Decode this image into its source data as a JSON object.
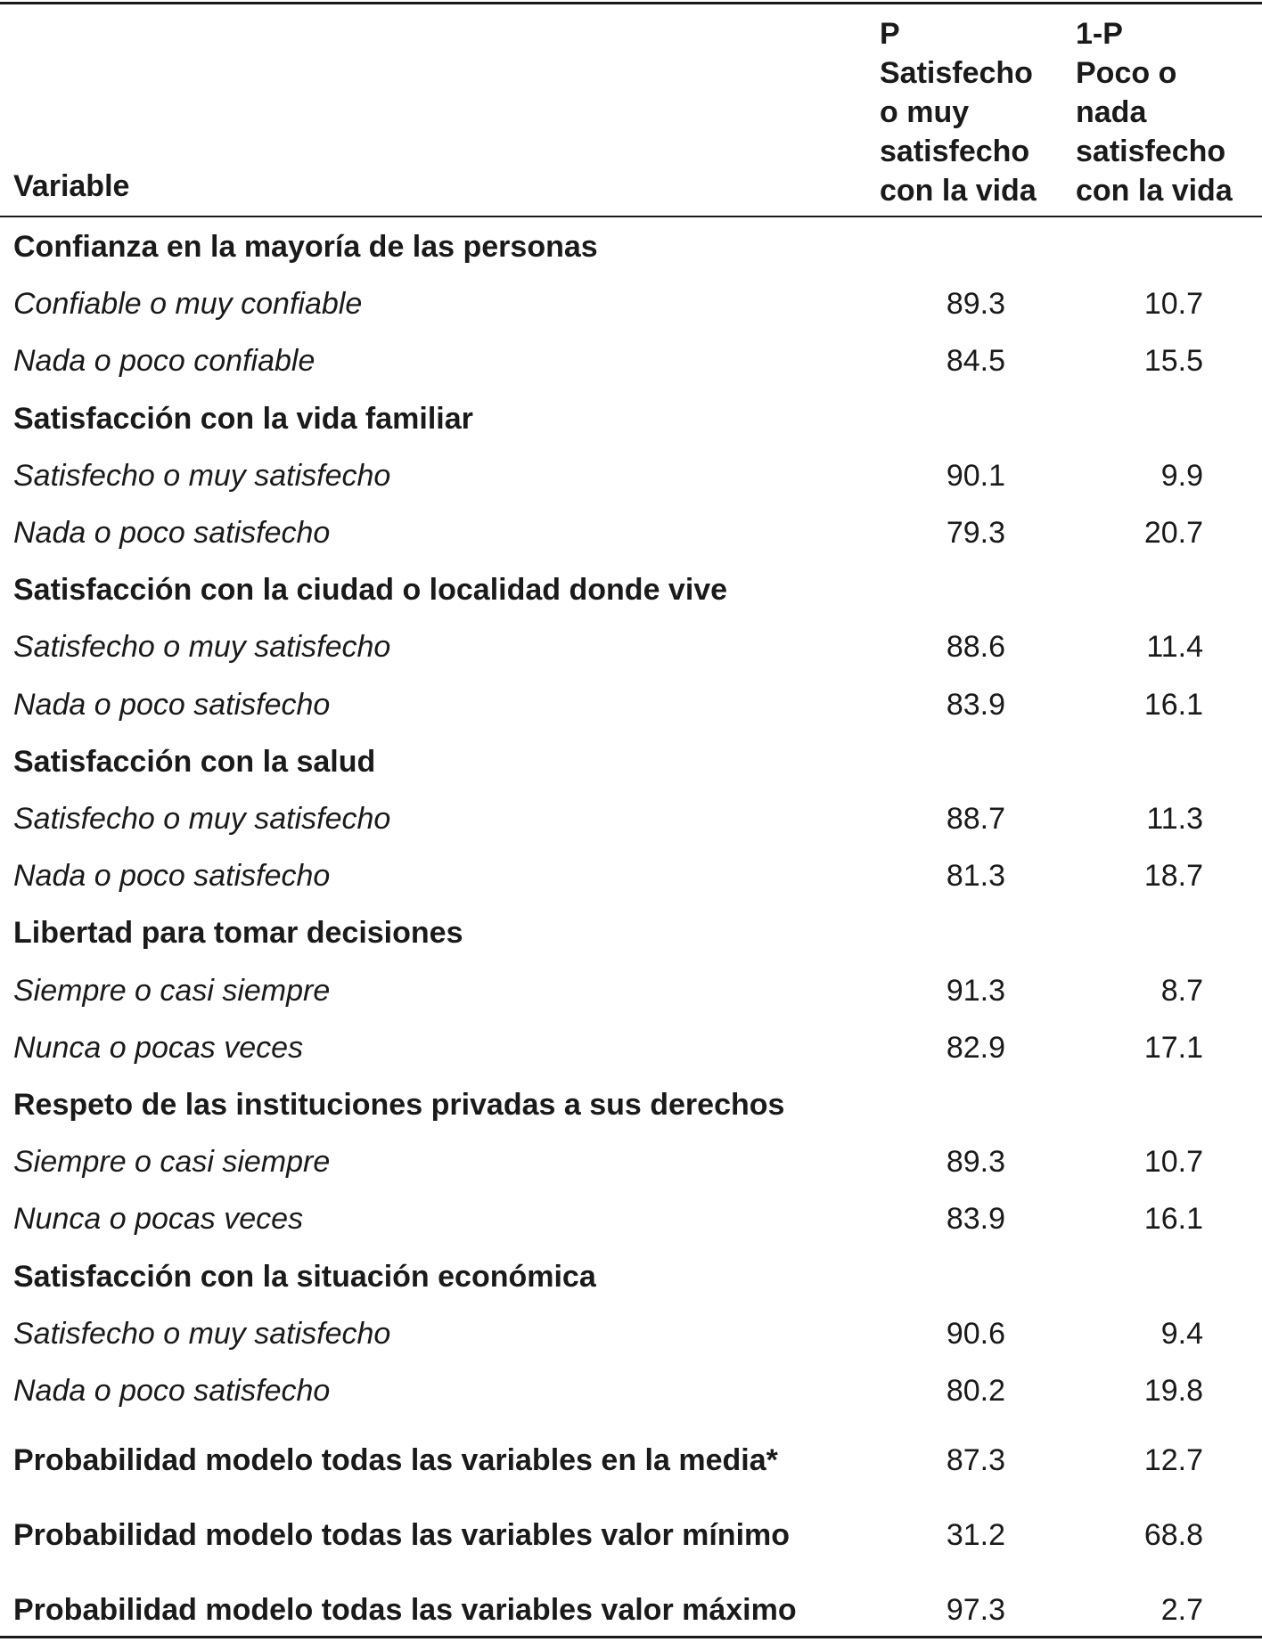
{
  "header": {
    "variable": "Variable",
    "p_col": [
      "P",
      "Satisfecho",
      "o muy",
      "satisfecho",
      "con la vida"
    ],
    "np_col": [
      "1-P",
      "Poco o",
      "nada",
      "satisfecho",
      "con la vida"
    ]
  },
  "rows": [
    {
      "type": "cat",
      "label": "Confianza en la mayoría de las personas",
      "p": "",
      "np": ""
    },
    {
      "type": "sub",
      "label": "Confiable o muy confiable",
      "p": "89.3",
      "np": "10.7"
    },
    {
      "type": "sub",
      "label": "Nada o poco confiable",
      "p": "84.5",
      "np": "15.5"
    },
    {
      "type": "cat",
      "label": "Satisfacción con la vida familiar",
      "p": "",
      "np": ""
    },
    {
      "type": "sub",
      "label": "Satisfecho o muy satisfecho",
      "p": "90.1",
      "np": "9.9"
    },
    {
      "type": "sub",
      "label": "Nada o poco satisfecho",
      "p": "79.3",
      "np": "20.7"
    },
    {
      "type": "cat",
      "label": "Satisfacción con la ciudad o localidad donde vive",
      "p": "",
      "np": ""
    },
    {
      "type": "sub",
      "label": "Satisfecho o muy satisfecho",
      "p": "88.6",
      "np": "11.4"
    },
    {
      "type": "sub",
      "label": "Nada o poco satisfecho",
      "p": "83.9",
      "np": "16.1"
    },
    {
      "type": "cat",
      "label": "Satisfacción con la salud",
      "p": "",
      "np": ""
    },
    {
      "type": "sub",
      "label": "Satisfecho o muy satisfecho",
      "p": "88.7",
      "np": "11.3"
    },
    {
      "type": "sub",
      "label": "Nada o poco satisfecho",
      "p": "81.3",
      "np": "18.7"
    },
    {
      "type": "cat",
      "label": "Libertad para tomar decisiones",
      "p": "",
      "np": ""
    },
    {
      "type": "sub",
      "label": "Siempre o casi siempre",
      "p": "91.3",
      "np": "8.7"
    },
    {
      "type": "sub",
      "label": "Nunca o pocas veces",
      "p": "82.9",
      "np": "17.1"
    },
    {
      "type": "cat",
      "label": "Respeto de las instituciones privadas a sus derechos",
      "p": "",
      "np": ""
    },
    {
      "type": "sub",
      "label": "Siempre o casi siempre",
      "p": "89.3",
      "np": "10.7"
    },
    {
      "type": "sub",
      "label": "Nunca o pocas veces",
      "p": "83.9",
      "np": "16.1"
    },
    {
      "type": "cat",
      "label": "Satisfacción con la situación económica",
      "p": "",
      "np": ""
    },
    {
      "type": "sub",
      "label": "Satisfecho o muy satisfecho",
      "p": "90.6",
      "np": "9.4"
    },
    {
      "type": "sub",
      "label": "Nada o poco satisfecho",
      "p": "80.2",
      "np": "19.8"
    },
    {
      "type": "summ",
      "label": "Probabilidad modelo todas las variables en la media*",
      "p": "87.3",
      "np": "12.7"
    },
    {
      "type": "summ",
      "label": "Probabilidad modelo todas las variables valor mínimo",
      "p": "31.2",
      "np": "68.8"
    },
    {
      "type": "summ",
      "label": "Probabilidad modelo todas las variables valor máximo",
      "p": "97.3",
      "np": "2.7"
    }
  ]
}
